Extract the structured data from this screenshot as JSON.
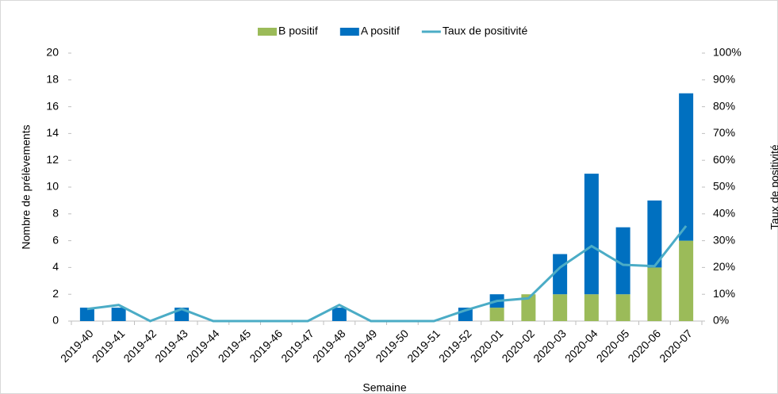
{
  "chart_data": {
    "type": "bar",
    "categories": [
      "2019-40",
      "2019-41",
      "2019-42",
      "2019-43",
      "2019-44",
      "2019-45",
      "2019-46",
      "2019-47",
      "2019-48",
      "2019-49",
      "2019-50",
      "2019-51",
      "2019-52",
      "2020-01",
      "2020-02",
      "2020-03",
      "2020-04",
      "2020-05",
      "2020-06",
      "2020-07"
    ],
    "series": [
      {
        "name": "B positif",
        "type": "bar",
        "color": "#9bbb59",
        "values": [
          0,
          0,
          0,
          0,
          0,
          0,
          0,
          0,
          0,
          0,
          0,
          0,
          0,
          1,
          2,
          2,
          2,
          2,
          4,
          6
        ]
      },
      {
        "name": "A positif",
        "type": "bar",
        "color": "#0070c0",
        "values": [
          1,
          1,
          0,
          1,
          0,
          0,
          0,
          0,
          1,
          0,
          0,
          0,
          1,
          1,
          0,
          3,
          9,
          5,
          5,
          11
        ]
      },
      {
        "name": "Taux de positivité",
        "type": "line",
        "axis": "y2",
        "color": "#4bacc6",
        "values": [
          4.5,
          6,
          0,
          4.5,
          0,
          0,
          0,
          0,
          6,
          0,
          0,
          0,
          4,
          7.5,
          8.5,
          20,
          28,
          21,
          20.5,
          35.5
        ]
      }
    ],
    "stacked": true,
    "xlabel": "Semaine",
    "ylabel": "Nombre de prélèvements",
    "y2label": "Taux de positivité",
    "ylim": [
      0,
      20
    ],
    "yticks": [
      0,
      2,
      4,
      6,
      8,
      10,
      12,
      14,
      16,
      18,
      20
    ],
    "y2lim": [
      0,
      100
    ],
    "y2ticks": [
      {
        "value": 0,
        "label": "0%"
      },
      {
        "value": 10,
        "label": "10%"
      },
      {
        "value": 20,
        "label": "20%"
      },
      {
        "value": 30,
        "label": "30%"
      },
      {
        "value": 40,
        "label": "40%"
      },
      {
        "value": 50,
        "label": "50%"
      },
      {
        "value": 60,
        "label": "60%"
      },
      {
        "value": 70,
        "label": "70%"
      },
      {
        "value": 80,
        "label": "80%"
      },
      {
        "value": 90,
        "label": "90%"
      },
      {
        "value": 100,
        "label": "100%"
      }
    ],
    "legend": "top"
  }
}
